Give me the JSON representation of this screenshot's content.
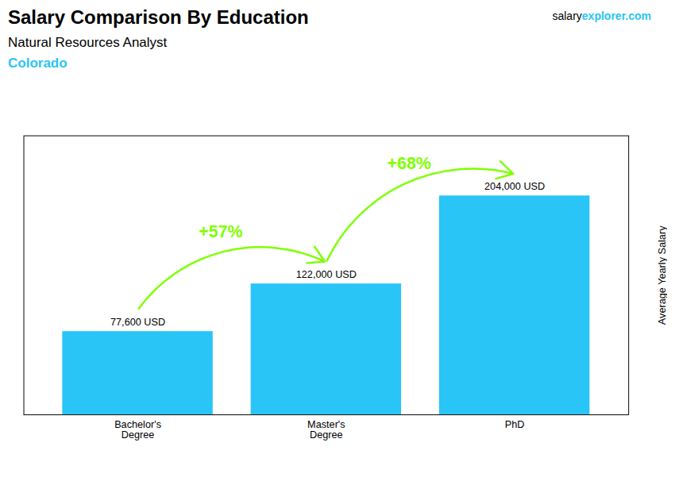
{
  "chart_data": {
    "type": "bar",
    "title": "Salary Comparison By Education",
    "subtitle": "Natural Resources Analyst",
    "ylabel": "Average Yearly Salary",
    "categories": [
      "Bachelor's\nDegree",
      "Master's\nDegree",
      "PhD"
    ],
    "values": [
      77600,
      122000,
      204000
    ],
    "value_labels": [
      "77,600 USD",
      "122,000 USD",
      "204,000 USD"
    ],
    "data_labels": true,
    "color": "#29c5f6",
    "ylim": [
      0,
      260000
    ],
    "tick_labels": "x",
    "grid": false,
    "annotations": [
      {
        "text": "Colorado",
        "color": "#29c5f6"
      },
      {
        "text": "salary"
      },
      {
        "text": "explorer",
        "color": "#29c5f6"
      },
      {
        "text": ".com",
        "color": "#29c5f6"
      },
      {
        "text": "+57%",
        "value": 57,
        "from": "Bachelor's\nDegree",
        "to": "Master's\nDegree",
        "color": "#7fff00"
      },
      {
        "text": "+68%",
        "value": 68,
        "from": "Master's\nDegree",
        "to": "PhD",
        "color": "#7fff00"
      }
    ]
  }
}
